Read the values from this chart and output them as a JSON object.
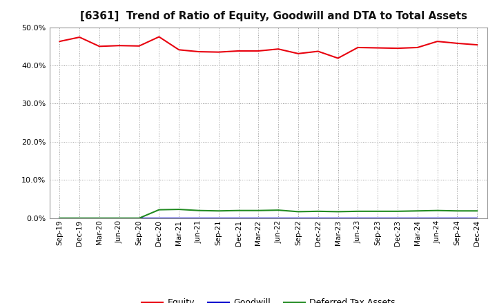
{
  "title": "[6361]  Trend of Ratio of Equity, Goodwill and DTA to Total Assets",
  "x_labels": [
    "Sep-19",
    "Dec-19",
    "Mar-20",
    "Jun-20",
    "Sep-20",
    "Dec-20",
    "Mar-21",
    "Jun-21",
    "Sep-21",
    "Dec-21",
    "Mar-22",
    "Jun-22",
    "Sep-22",
    "Dec-22",
    "Mar-23",
    "Jun-23",
    "Sep-23",
    "Dec-23",
    "Mar-24",
    "Jun-24",
    "Sep-24",
    "Dec-24"
  ],
  "equity": [
    0.463,
    0.474,
    0.45,
    0.452,
    0.451,
    0.475,
    0.441,
    0.436,
    0.435,
    0.438,
    0.438,
    0.443,
    0.431,
    0.437,
    0.419,
    0.447,
    0.446,
    0.445,
    0.447,
    0.463,
    0.458,
    0.454
  ],
  "goodwill": [
    0.0,
    0.0,
    0.0,
    0.0,
    0.0,
    0.0,
    0.0,
    0.0,
    0.0,
    0.0,
    0.0,
    0.0,
    0.0,
    0.0,
    0.0,
    0.0,
    0.0,
    0.0,
    0.0,
    0.0,
    0.0,
    0.0
  ],
  "dta": [
    0.0,
    0.0,
    0.0,
    0.0,
    0.0,
    0.022,
    0.023,
    0.02,
    0.019,
    0.02,
    0.02,
    0.021,
    0.017,
    0.018,
    0.017,
    0.018,
    0.018,
    0.018,
    0.019,
    0.02,
    0.019,
    0.019
  ],
  "equity_color": "#e8000d",
  "goodwill_color": "#0000cc",
  "dta_color": "#228b22",
  "background_color": "#ffffff",
  "grid_color": "#999999",
  "ylim": [
    0.0,
    0.5
  ],
  "yticks": [
    0.0,
    0.1,
    0.2,
    0.3,
    0.4,
    0.5
  ],
  "legend_labels": [
    "Equity",
    "Goodwill",
    "Deferred Tax Assets"
  ],
  "title_fontsize": 11,
  "tick_fontsize": 8,
  "xlabel_fontsize": 7.5
}
